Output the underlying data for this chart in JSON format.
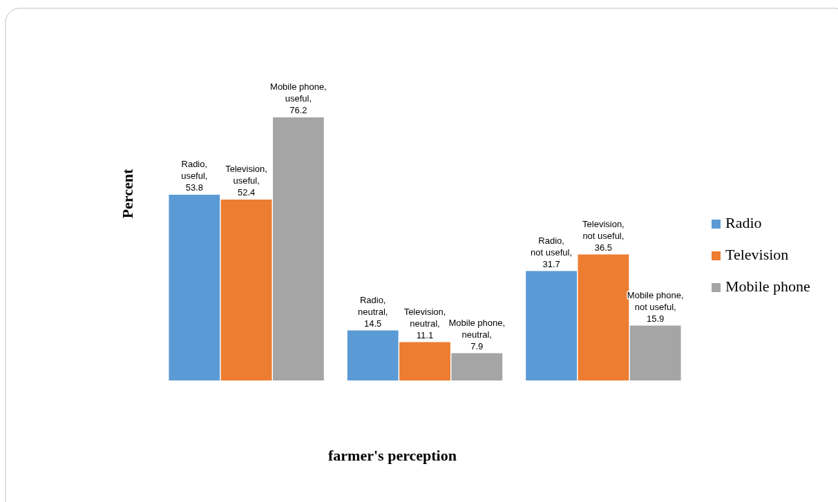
{
  "chart_data": {
    "type": "bar",
    "ylabel": "Percent",
    "xlabel": "farmer's perception",
    "categories": [
      null,
      null,
      null
    ],
    "legend": "right",
    "series": [
      {
        "name": "Radio",
        "color": "#5b9bd5",
        "values": [
          53.8,
          14.5,
          31.7
        ],
        "value_labels": [
          "Radio, useful, 53.8",
          "Radio, neutral, 14.5",
          "Radio, not useful, 31.7"
        ]
      },
      {
        "name": "Television",
        "color": "#ed7d31",
        "values": [
          52.4,
          11.1,
          36.5
        ],
        "value_labels": [
          "Television, useful, 52.4",
          "Television, neutral, 11.1",
          "Television, not useful, 36.5"
        ]
      },
      {
        "name": "Mobile phone",
        "color": "#a5a5a5",
        "values": [
          76.2,
          7.9,
          15.9
        ],
        "value_labels": [
          "Mobile phone, useful, 76.2",
          "Mobile phone, neutral, 7.9",
          "Mobile phone, not useful, 15.9"
        ]
      }
    ]
  }
}
